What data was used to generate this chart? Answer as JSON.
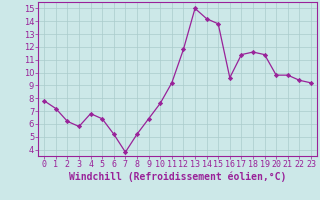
{
  "x": [
    0,
    1,
    2,
    3,
    4,
    5,
    6,
    7,
    8,
    9,
    10,
    11,
    12,
    13,
    14,
    15,
    16,
    17,
    18,
    19,
    20,
    21,
    22,
    23
  ],
  "y": [
    7.8,
    7.2,
    6.2,
    5.8,
    6.8,
    6.4,
    5.2,
    3.8,
    5.2,
    6.4,
    7.6,
    9.2,
    11.8,
    15.0,
    14.2,
    13.8,
    9.6,
    11.4,
    11.6,
    11.4,
    9.8,
    9.8,
    9.4,
    9.2
  ],
  "line_color": "#992299",
  "marker": "D",
  "marker_size": 2.2,
  "bg_color": "#cce8e8",
  "grid_color": "#aacccc",
  "xlabel": "Windchill (Refroidissement éolien,°C)",
  "xlabel_color": "#992299",
  "tick_color": "#992299",
  "spine_color": "#992299",
  "ylim": [
    3.5,
    15.5
  ],
  "xlim": [
    -0.5,
    23.5
  ],
  "yticks": [
    4,
    5,
    6,
    7,
    8,
    9,
    10,
    11,
    12,
    13,
    14,
    15
  ],
  "xticks": [
    0,
    1,
    2,
    3,
    4,
    5,
    6,
    7,
    8,
    9,
    10,
    11,
    12,
    13,
    14,
    15,
    16,
    17,
    18,
    19,
    20,
    21,
    22,
    23
  ],
  "axis_fontsize": 6.5,
  "tick_fontsize": 6.0,
  "xlabel_fontsize": 7.0
}
